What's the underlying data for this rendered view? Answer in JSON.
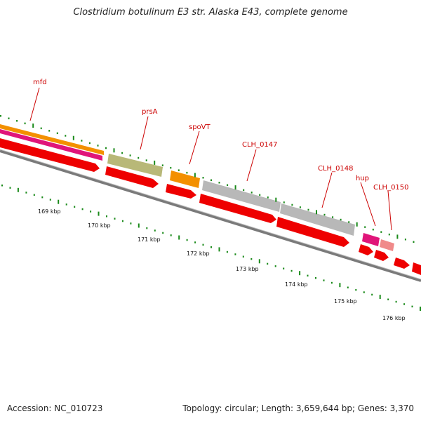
{
  "title": "Clostridium botulinum E3 str. Alaska E43, complete genome",
  "footer": {
    "accession": "Accession: NC_010723",
    "summary": "Topology: circular; Length: 3,659,644 bp; Genes: 3,370"
  },
  "colors": {
    "cds_red": "#ee0000",
    "orange": "#f39000",
    "magenta": "#e0157a",
    "olive": "#b8b878",
    "gray": "#b8b8b8",
    "pink": "#e070a0",
    "salmon": "#f08a8a",
    "label_red": "#cc0000",
    "tick_green": "#1a8a1a",
    "backbone": "#888888"
  },
  "gene_labels": [
    "mfd",
    "prsA",
    "spoVT",
    "CLH_0147",
    "CLH_0148",
    "hup",
    "CLH_0150"
  ],
  "ruler": [
    "169 kbp",
    "170 kbp",
    "171 kbp",
    "172 kbp",
    "173 kbp",
    "174 kbp",
    "175 kbp",
    "176 kbp"
  ]
}
